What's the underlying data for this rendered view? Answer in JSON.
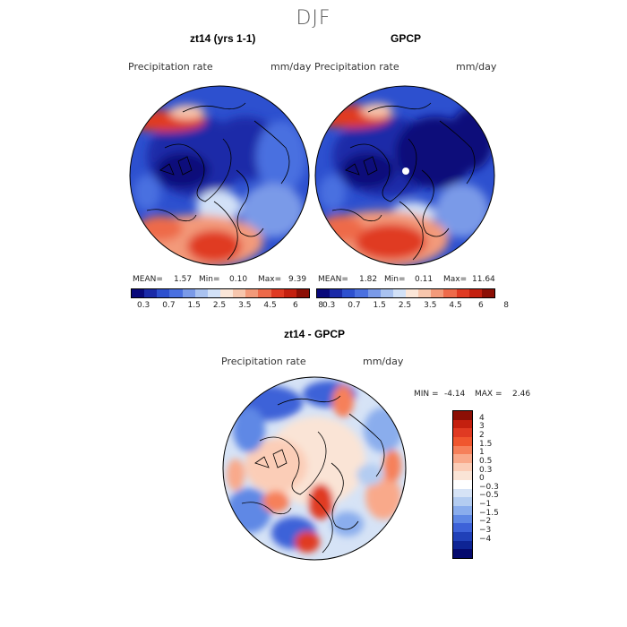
{
  "season": "DJF",
  "panels": {
    "left": {
      "title": "zt14 (yrs 1-1)",
      "var": "Precipitation rate",
      "units": "mm/day",
      "mean_label": "MEAN=",
      "mean": "1.57",
      "min_label": "Min=",
      "min": "0.10",
      "max_label": "Max=",
      "max": "9.39"
    },
    "right": {
      "title": "GPCP",
      "var": "Precipitation rate",
      "units": "mm/day",
      "mean_label": "MEAN=",
      "mean": "1.82",
      "min_label": "Min=",
      "min": "0.11",
      "max_label": "Max=",
      "max": "11.64"
    },
    "diff": {
      "title": "zt14 - GPCP",
      "var": "Precipitation rate",
      "units": "mm/day",
      "min_label": "MIN =",
      "min": "-4.14",
      "max_label": "MAX =",
      "max": "2.46"
    }
  },
  "abs_colorbar": {
    "colors": [
      "#08087a",
      "#1a2aa8",
      "#2d50cf",
      "#4a70e0",
      "#7a9ae8",
      "#a9c2f0",
      "#d2e1f7",
      "#fbe6d8",
      "#f7c6ad",
      "#f39a7a",
      "#ee6a4a",
      "#e03a22",
      "#c4200f",
      "#8c0f05"
    ],
    "ticks": [
      "0.3",
      "0.7",
      "1.5",
      "2.5",
      "3.5",
      "4.5",
      "6",
      "8"
    ]
  },
  "diff_colorbar": {
    "colors": [
      "#8c0f05",
      "#c4200f",
      "#e03a22",
      "#f0562e",
      "#f6805a",
      "#f9a98a",
      "#fbcdb7",
      "#fae4d6",
      "#ffffff",
      "#d6e3f6",
      "#b3ccf1",
      "#8aaded",
      "#5f88e5",
      "#3d62d8",
      "#2040b8",
      "#0e2494",
      "#050a6e"
    ],
    "ticks": [
      "4",
      "3",
      "2",
      "1.5",
      "1",
      "0.5",
      "0.3",
      "0",
      "−0.3",
      "−0.5",
      "−1",
      "−1.5",
      "−2",
      "−3",
      "−4"
    ]
  }
}
